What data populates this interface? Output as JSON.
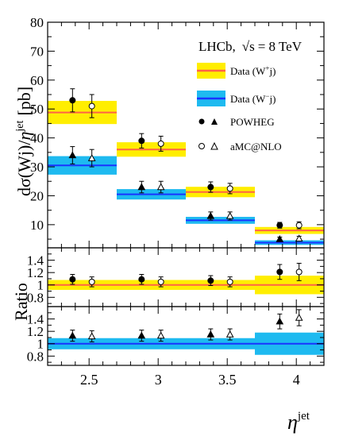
{
  "chart_data": [
    {
      "type": "scatter",
      "panel": "main",
      "ylabel": "dσ(Wj)/η^jet [pb]",
      "ylabel_parts": {
        "main": "dσ(Wj)/",
        "eta": "η",
        "sup": "jet",
        "unit": "[pb]"
      },
      "annotation": {
        "experiment": "LHCb,",
        "sqrt": "√s",
        "energy": "= 8 TeV"
      },
      "xlim": [
        2.2,
        4.2
      ],
      "ylim": [
        2,
        80
      ],
      "yticks": [
        10,
        20,
        30,
        40,
        50,
        60,
        70,
        80
      ],
      "bins": [
        [
          2.2,
          2.7
        ],
        [
          2.7,
          3.2
        ],
        [
          3.2,
          3.7
        ],
        [
          3.7,
          4.2
        ]
      ],
      "series": [
        {
          "name": "Data (W+j)",
          "legend_text": "Data (W",
          "legend_charge": "+",
          "legend_tail": "j)",
          "kind": "band",
          "fill": "#ffee00",
          "line": "#ff6347",
          "values": [
            48.8,
            36.0,
            21.3,
            8.0
          ],
          "errors": [
            4.0,
            2.5,
            1.8,
            1.2
          ]
        },
        {
          "name": "Data (W−j)",
          "legend_text": "Data (W",
          "legend_charge": "−",
          "legend_tail": "j)",
          "kind": "band",
          "fill": "#1ebaf0",
          "line": "#1a33ff",
          "values": [
            30.5,
            20.5,
            11.5,
            3.8
          ],
          "errors": [
            3.2,
            1.8,
            1.2,
            0.8
          ]
        },
        {
          "name": "POWHEG",
          "kind": "points",
          "x": [
            2.38,
            2.88,
            3.38,
            3.88
          ],
          "w_plus": [
            53.0,
            39.0,
            23.0,
            9.8
          ],
          "w_plus_err": [
            4.0,
            2.5,
            1.8,
            1.0
          ],
          "w_minus": [
            34.0,
            23.0,
            13.0,
            5.0
          ],
          "w_minus_err": [
            3.0,
            2.0,
            1.4,
            0.7
          ]
        },
        {
          "name": "aMC@NLO",
          "kind": "points",
          "x": [
            2.52,
            3.02,
            3.52,
            4.02
          ],
          "w_plus": [
            51.0,
            38.0,
            22.5,
            9.8
          ],
          "w_plus_err": [
            4.0,
            2.6,
            1.8,
            1.2
          ],
          "w_minus": [
            33.0,
            23.0,
            13.0,
            5.2
          ],
          "w_minus_err": [
            3.0,
            2.0,
            1.4,
            0.8
          ]
        }
      ]
    },
    {
      "type": "scatter",
      "panel": "ratio_wplus",
      "ylabel": "Ratio",
      "ylim": [
        0.65,
        1.6
      ],
      "yticks": [
        0.8,
        1,
        1.2,
        1.4
      ],
      "ytick_labels": [
        "0.8",
        "1",
        "1.2",
        "1.4"
      ],
      "band": {
        "fill": "#ffee00",
        "line": "#ff6347",
        "halfwidths": [
          0.08,
          0.08,
          0.08,
          0.15
        ]
      },
      "powheg": {
        "values": [
          1.09,
          1.09,
          1.07,
          1.21
        ],
        "errors": [
          0.08,
          0.08,
          0.08,
          0.12
        ]
      },
      "amcnlo": {
        "values": [
          1.05,
          1.05,
          1.05,
          1.21
        ],
        "errors": [
          0.08,
          0.08,
          0.08,
          0.14
        ]
      }
    },
    {
      "type": "scatter",
      "panel": "ratio_wminus",
      "ylim": [
        0.65,
        1.6
      ],
      "yticks": [
        0.8,
        1,
        1.2,
        1.4
      ],
      "ytick_labels": [
        "0.8",
        "1",
        "1.2",
        "1.4"
      ],
      "xticks": [
        2.5,
        3,
        3.5,
        4
      ],
      "xtick_labels": [
        "2.5",
        "3",
        "3.5",
        "4"
      ],
      "xlabel": {
        "eta": "η",
        "sup": "jet"
      },
      "band": {
        "fill": "#1ebaf0",
        "line": "#1a33ff",
        "halfwidths": [
          0.09,
          0.09,
          0.09,
          0.18
        ]
      },
      "powheg": {
        "values": [
          1.13,
          1.13,
          1.15,
          1.36
        ],
        "errors": [
          0.09,
          0.09,
          0.09,
          0.12
        ]
      },
      "amcnlo": {
        "values": [
          1.12,
          1.13,
          1.15,
          1.42
        ],
        "errors": [
          0.09,
          0.09,
          0.09,
          0.13
        ]
      }
    }
  ]
}
